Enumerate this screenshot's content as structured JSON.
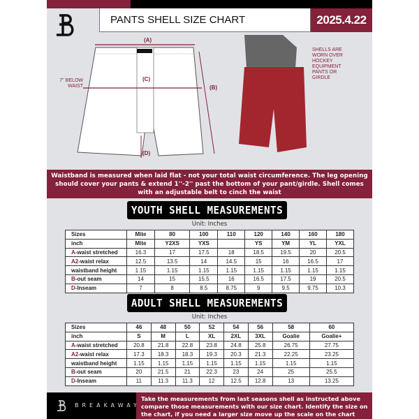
{
  "header": {
    "title": "PANTS SHELL SIZE CHART",
    "date": "2025.4.22",
    "brand_logo": "B"
  },
  "illustration": {
    "label_a": "(A)",
    "label_b": "(B)",
    "label_c": "(C)",
    "label_d": "(D)",
    "below_waist": "7'' BELOW WAIST",
    "note": "SHELLS ARE WORN OVER HOCKEY EQUIPMENT PANTS OR GIRDLE"
  },
  "info": "Waistband is measured when laid flat - not your total waist circumference. The leg opening should cover your pants & extend 1''-2'' past the bottom of your pant/girdle. Shell comes with an adjustable belt to cinch the waist",
  "youth": {
    "title": "YOUTH SHELL MEASUREMENTS",
    "unit": "Unit: Inches",
    "rows": [
      {
        "p": "",
        "l": "Sizes",
        "v": [
          "Mite",
          "80",
          "100",
          "110",
          "120",
          "140",
          "160",
          "180"
        ]
      },
      {
        "p": "",
        "l": "inch",
        "v": [
          "Mite",
          "Y2XS",
          "YXS",
          "",
          "YS",
          "YM",
          "YL",
          "YXL"
        ]
      },
      {
        "p": "A",
        "l": "-waist stretched",
        "v": [
          "16.3",
          "17",
          "17.5",
          "18",
          "18.5",
          "19.5",
          "20",
          "20.5"
        ]
      },
      {
        "p": "A2",
        "l": "-waist relax",
        "v": [
          "12.5",
          "13.5",
          "14",
          "14.5",
          "15",
          "16",
          "16.5",
          "17"
        ]
      },
      {
        "p": "",
        "l": "waistband height",
        "v": [
          "1.15",
          "1.15",
          "1.15",
          "1.15",
          "1.15",
          "1.15",
          "1.15",
          "1.15"
        ]
      },
      {
        "p": "B",
        "l": "-out seam",
        "v": [
          "14",
          "15",
          "15.5",
          "16",
          "16.5",
          "17.5",
          "19",
          "20.5"
        ]
      },
      {
        "p": "D",
        "l": "-Inseam",
        "v": [
          "7",
          "8",
          "8.5",
          "8.75",
          "9",
          "9.5",
          "9.75",
          "10.3"
        ]
      }
    ]
  },
  "adult": {
    "title": "ADULT SHELL MEASUREMENTS",
    "unit": "Unit: Inches",
    "rows": [
      {
        "p": "",
        "l": "Sizes",
        "v": [
          "46",
          "48",
          "50",
          "52",
          "54",
          "56",
          "58",
          "60"
        ]
      },
      {
        "p": "",
        "l": "inch",
        "v": [
          "S",
          "M",
          "L",
          "XL",
          "2XL",
          "3XL",
          "Goalie",
          "Goalie+"
        ]
      },
      {
        "p": "A",
        "l": "-waist stretched",
        "v": [
          "20.8",
          "21.8",
          "22.8",
          "23.8",
          "24.8",
          "25.8",
          "26.75",
          "27.75"
        ]
      },
      {
        "p": "A2",
        "l": "-waist relax",
        "v": [
          "17.3",
          "18.3",
          "18.3",
          "19.3",
          "20.3",
          "21.3",
          "22.25",
          "23.25"
        ]
      },
      {
        "p": "",
        "l": "waistband height",
        "v": [
          "1.15",
          "1.15",
          "1.15",
          "1.15",
          "1.15",
          "1.15",
          "1.15",
          "1.15"
        ]
      },
      {
        "p": "B",
        "l": "-out seam",
        "v": [
          "20",
          "21.5",
          "21",
          "22.3",
          "23",
          "24",
          "25",
          "25.5"
        ]
      },
      {
        "p": "D",
        "l": "-Inseam",
        "v": [
          "11",
          "11.3",
          "11.3",
          "12",
          "12.5",
          "12.8",
          "13",
          "13.25"
        ]
      }
    ]
  },
  "footer": {
    "brand": "BREAKAWAY",
    "text": "Take the measurements from last seasons shell as instructed above compare those measurements  with our size chart. Identify the size on the chart, if you need a larger size move up the scale on the chart"
  },
  "colors": {
    "accent": "#84213b",
    "background": "#e1e2e6"
  }
}
